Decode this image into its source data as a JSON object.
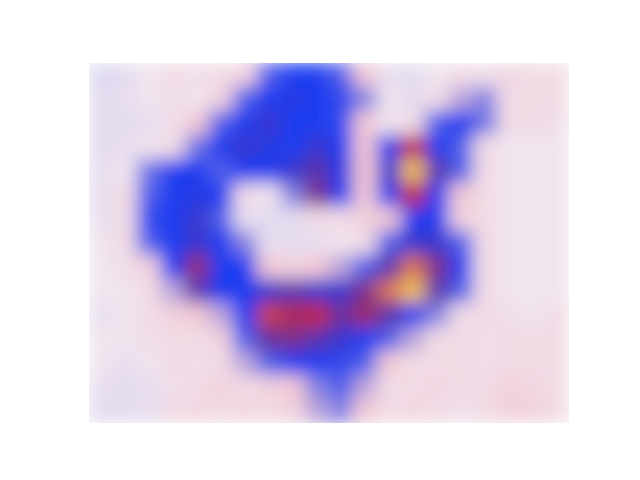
{
  "chart_data": {
    "type": "heatmap",
    "tick_labels": false,
    "clim": [
      0,
      1
    ],
    "cells": [
      [
        0.08,
        0.1,
        0.15,
        0.2,
        0.18,
        0.2,
        0.25,
        0.45,
        0.5,
        0.5,
        0.45,
        0.3,
        0.12,
        0.1,
        0.15,
        0.2,
        0.18,
        0.22,
        0.2,
        0.2
      ],
      [
        0.1,
        0.12,
        0.15,
        0.18,
        0.15,
        0.25,
        0.45,
        0.5,
        0.52,
        0.5,
        0.48,
        0.4,
        0.15,
        0.1,
        0.2,
        0.35,
        0.4,
        0.2,
        0.2,
        0.2
      ],
      [
        0.1,
        0.1,
        0.12,
        0.18,
        0.3,
        0.45,
        0.5,
        0.55,
        0.5,
        0.5,
        0.48,
        0.3,
        0.15,
        0.2,
        0.45,
        0.5,
        0.42,
        0.2,
        0.2,
        0.18
      ],
      [
        0.1,
        0.12,
        0.15,
        0.2,
        0.42,
        0.5,
        0.55,
        0.52,
        0.5,
        0.55,
        0.5,
        0.3,
        0.5,
        0.75,
        0.5,
        0.45,
        0.2,
        0.15,
        0.15,
        0.15
      ],
      [
        0.12,
        0.15,
        0.42,
        0.5,
        0.5,
        0.45,
        0.5,
        0.5,
        0.55,
        0.6,
        0.52,
        0.3,
        0.55,
        0.95,
        0.6,
        0.45,
        0.2,
        0.15,
        0.15,
        0.15
      ],
      [
        0.12,
        0.2,
        0.45,
        0.5,
        0.52,
        0.5,
        0.2,
        0.15,
        0.4,
        0.65,
        0.5,
        0.3,
        0.5,
        0.75,
        0.5,
        0.3,
        0.2,
        0.15,
        0.15,
        0.15
      ],
      [
        0.12,
        0.2,
        0.48,
        0.5,
        0.55,
        0.45,
        0.12,
        0.1,
        0.1,
        0.2,
        0.2,
        0.25,
        0.3,
        0.5,
        0.5,
        0.25,
        0.2,
        0.15,
        0.15,
        0.15
      ],
      [
        0.15,
        0.2,
        0.45,
        0.5,
        0.55,
        0.5,
        0.4,
        0.12,
        0.1,
        0.12,
        0.15,
        0.2,
        0.45,
        0.55,
        0.55,
        0.45,
        0.2,
        0.15,
        0.15,
        0.15
      ],
      [
        0.15,
        0.18,
        0.25,
        0.5,
        0.68,
        0.5,
        0.5,
        0.3,
        0.25,
        0.3,
        0.35,
        0.45,
        0.6,
        0.85,
        0.65,
        0.5,
        0.2,
        0.15,
        0.15,
        0.15
      ],
      [
        0.15,
        0.15,
        0.2,
        0.35,
        0.6,
        0.5,
        0.5,
        0.55,
        0.6,
        0.55,
        0.55,
        0.65,
        0.85,
        0.95,
        0.6,
        0.45,
        0.2,
        0.15,
        0.15,
        0.15
      ],
      [
        0.12,
        0.15,
        0.2,
        0.25,
        0.3,
        0.35,
        0.5,
        0.78,
        0.72,
        0.75,
        0.62,
        0.7,
        0.6,
        0.5,
        0.4,
        0.2,
        0.2,
        0.18,
        0.15,
        0.2
      ],
      [
        0.15,
        0.15,
        0.18,
        0.2,
        0.2,
        0.25,
        0.45,
        0.62,
        0.65,
        0.6,
        0.55,
        0.5,
        0.45,
        0.35,
        0.2,
        0.2,
        0.18,
        0.2,
        0.2,
        0.2
      ],
      [
        0.15,
        0.12,
        0.15,
        0.2,
        0.18,
        0.2,
        0.35,
        0.45,
        0.5,
        0.5,
        0.48,
        0.45,
        0.3,
        0.2,
        0.2,
        0.2,
        0.18,
        0.2,
        0.2,
        0.2
      ],
      [
        0.12,
        0.1,
        0.12,
        0.18,
        0.2,
        0.25,
        0.2,
        0.25,
        0.3,
        0.4,
        0.45,
        0.35,
        0.2,
        0.2,
        0.22,
        0.2,
        0.2,
        0.25,
        0.22,
        0.2
      ],
      [
        0.1,
        0.1,
        0.12,
        0.2,
        0.22,
        0.2,
        0.22,
        0.2,
        0.25,
        0.35,
        0.4,
        0.3,
        0.2,
        0.22,
        0.2,
        0.18,
        0.2,
        0.25,
        0.25,
        0.2
      ]
    ]
  }
}
